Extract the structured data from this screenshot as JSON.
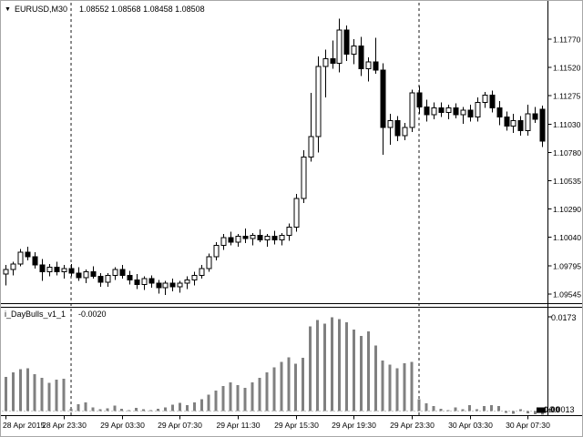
{
  "colors": {
    "background": "#ffffff",
    "border": "#a8a8a8",
    "text": "#000000",
    "bull_body": "#ffffff",
    "bear_body": "#000000",
    "candle_outline": "#000000",
    "histogram": "#808080",
    "zero_line": "#c8c8c8",
    "day_separator": "#1a1a1a",
    "axis_line": "#000000"
  },
  "header": {
    "dropdown_icon": "▼"
  },
  "indicator_marker": {
    "arrow": "◄",
    "overlap_text": "0.00"
  },
  "chart_data": [
    {
      "type": "candlestick",
      "title": "EURUSD,M30",
      "ohlc_display": "1.08552 1.08568 1.08458 1.08508",
      "y_ticks": [
        "1.11770",
        "1.11520",
        "1.11275",
        "1.11030",
        "1.10780",
        "1.10535",
        "1.10290",
        "1.10040",
        "1.09795",
        "1.09545"
      ],
      "x_ticks": [
        {
          "bar": 0,
          "label": "28 Apr 2015"
        },
        {
          "bar": 8,
          "label": "28 Apr 23:30"
        },
        {
          "bar": 16,
          "label": "29 Apr 03:30"
        },
        {
          "bar": 24,
          "label": "29 Apr 07:30"
        },
        {
          "bar": 32,
          "label": "29 Apr 11:30"
        },
        {
          "bar": 40,
          "label": "29 Apr 15:30"
        },
        {
          "bar": 48,
          "label": "29 Apr 19:30"
        },
        {
          "bar": 56,
          "label": "29 Apr 23:30"
        },
        {
          "bar": 64,
          "label": "30 Apr 03:30"
        },
        {
          "bar": 72,
          "label": "30 Apr 07:30"
        }
      ],
      "day_separator_bars": [
        9,
        57
      ],
      "candles": [
        [
          1.0972,
          1.098,
          1.0962,
          1.0976
        ],
        [
          1.0976,
          1.0983,
          1.0971,
          1.0981
        ],
        [
          1.0981,
          1.0994,
          1.0979,
          1.0991
        ],
        [
          1.0991,
          1.0996,
          1.0984,
          1.0987
        ],
        [
          1.0987,
          1.0991,
          1.0977,
          1.098
        ],
        [
          1.098,
          1.0985,
          1.0966,
          1.0974
        ],
        [
          1.0974,
          1.0981,
          1.097,
          1.0978
        ],
        [
          1.0978,
          1.0983,
          1.0971,
          1.0974
        ],
        [
          1.0974,
          1.098,
          1.0968,
          1.0977
        ],
        [
          1.0977,
          1.0981,
          1.097,
          1.0973
        ],
        [
          1.0973,
          1.0978,
          1.0966,
          1.0969
        ],
        [
          1.0969,
          1.0976,
          1.0964,
          1.0974
        ],
        [
          1.0974,
          1.0979,
          1.0968,
          1.097
        ],
        [
          1.097,
          1.0973,
          1.0961,
          1.0965
        ],
        [
          1.0965,
          1.0973,
          1.0961,
          1.0971
        ],
        [
          1.0971,
          1.0978,
          1.0967,
          1.0976
        ],
        [
          1.0976,
          1.098,
          1.0968,
          1.0971
        ],
        [
          1.0971,
          1.0975,
          1.0963,
          1.0967
        ],
        [
          1.0967,
          1.0972,
          1.0959,
          1.0963
        ],
        [
          1.0963,
          1.097,
          1.0958,
          1.0968
        ],
        [
          1.0968,
          1.0971,
          1.096,
          1.0964
        ],
        [
          1.0964,
          1.0967,
          1.0955,
          1.096
        ],
        [
          1.096,
          1.0966,
          1.0954,
          1.0964
        ],
        [
          1.0964,
          1.0968,
          1.0957,
          1.0961
        ],
        [
          1.0961,
          1.0966,
          1.0956,
          1.0964
        ],
        [
          1.0964,
          1.097,
          1.0959,
          1.0967
        ],
        [
          1.0967,
          1.0974,
          1.0962,
          1.0971
        ],
        [
          1.0971,
          1.098,
          1.0968,
          1.0977
        ],
        [
          1.0977,
          1.099,
          1.0974,
          1.0987
        ],
        [
          1.0987,
          1.1,
          1.0984,
          1.0997
        ],
        [
          1.0997,
          1.1007,
          1.0993,
          1.1004
        ],
        [
          1.1004,
          1.1009,
          1.0997,
          1.1
        ],
        [
          1.1,
          1.1007,
          1.0996,
          1.1005
        ],
        [
          1.1005,
          1.1012,
          1.0999,
          1.1003
        ],
        [
          1.1003,
          1.1008,
          1.0997,
          1.1006
        ],
        [
          1.1006,
          1.1011,
          1.1,
          1.1002
        ],
        [
          1.1002,
          1.1007,
          1.0996,
          1.1005
        ],
        [
          1.1005,
          1.101,
          1.0998,
          1.1002
        ],
        [
          1.1002,
          1.1008,
          1.0997,
          1.1006
        ],
        [
          1.1006,
          1.1016,
          1.1001,
          1.1013
        ],
        [
          1.1013,
          1.1042,
          1.1009,
          1.1038
        ],
        [
          1.1038,
          1.108,
          1.1034,
          1.1074
        ],
        [
          1.1074,
          1.113,
          1.107,
          1.1092
        ],
        [
          1.1092,
          1.1162,
          1.1078,
          1.1153
        ],
        [
          1.1153,
          1.1168,
          1.1126,
          1.116
        ],
        [
          1.116,
          1.1176,
          1.1151,
          1.1156
        ],
        [
          1.1156,
          1.1195,
          1.1148,
          1.1185
        ],
        [
          1.1185,
          1.1189,
          1.1158,
          1.1164
        ],
        [
          1.1164,
          1.1177,
          1.1155,
          1.1171
        ],
        [
          1.1171,
          1.1179,
          1.1145,
          1.1151
        ],
        [
          1.1151,
          1.1161,
          1.114,
          1.1157
        ],
        [
          1.1157,
          1.1178,
          1.1147,
          1.115
        ],
        [
          1.115,
          1.1156,
          1.1076,
          1.11
        ],
        [
          1.11,
          1.1112,
          1.1085,
          1.1106
        ],
        [
          1.1106,
          1.111,
          1.1088,
          1.1093
        ],
        [
          1.1093,
          1.1104,
          1.1089,
          1.11
        ],
        [
          1.11,
          1.1133,
          1.1096,
          1.113
        ],
        [
          1.113,
          1.1136,
          1.1112,
          1.1118
        ],
        [
          1.1118,
          1.1124,
          1.1105,
          1.1111
        ],
        [
          1.1111,
          1.1122,
          1.1107,
          1.1117
        ],
        [
          1.1117,
          1.1122,
          1.1109,
          1.1113
        ],
        [
          1.1113,
          1.112,
          1.1107,
          1.1117
        ],
        [
          1.1117,
          1.1121,
          1.1108,
          1.1111
        ],
        [
          1.1111,
          1.1118,
          1.1103,
          1.1115
        ],
        [
          1.1115,
          1.112,
          1.1105,
          1.1109
        ],
        [
          1.1109,
          1.1126,
          1.1105,
          1.1122
        ],
        [
          1.1122,
          1.1131,
          1.1117,
          1.1128
        ],
        [
          1.1128,
          1.1132,
          1.1113,
          1.1117
        ],
        [
          1.1117,
          1.1123,
          1.1102,
          1.1109
        ],
        [
          1.1109,
          1.1114,
          1.1097,
          1.1101
        ],
        [
          1.1101,
          1.1112,
          1.1095,
          1.1106
        ],
        [
          1.1106,
          1.111,
          1.1093,
          1.1097
        ],
        [
          1.1097,
          1.112,
          1.1093,
          1.1112
        ],
        [
          1.1112,
          1.1118,
          1.1104,
          1.1107
        ],
        [
          1.1116,
          1.1119,
          1.1083,
          1.1088
        ]
      ]
    },
    {
      "type": "bar",
      "title": "i_DayBulls_v1_1",
      "current_value": "-0.0020",
      "scale_max": "0.0173",
      "scale_min_label": "0.0013",
      "values": [
        0.0063,
        0.0071,
        0.0077,
        0.0079,
        0.0068,
        0.0061,
        0.0052,
        0.0058,
        0.006,
        0.0004,
        0.0013,
        0.0016,
        0.0007,
        0.0003,
        0.0005,
        0.001,
        0.0004,
        0.0002,
        0.0006,
        0.0003,
        0.0002,
        0.0004,
        0.0007,
        0.0012,
        0.0015,
        0.0011,
        0.0016,
        0.0022,
        0.003,
        0.0038,
        0.0046,
        0.0053,
        0.0048,
        0.0043,
        0.0053,
        0.0061,
        0.0071,
        0.0081,
        0.0091,
        0.0099,
        0.0087,
        0.0098,
        0.0156,
        0.0168,
        0.0161,
        0.0173,
        0.017,
        0.0164,
        0.015,
        0.0139,
        0.0147,
        0.0121,
        0.0093,
        0.0086,
        0.0079,
        0.0088,
        0.0091,
        0.0022,
        0.0014,
        0.0009,
        0.0004,
        0.0002,
        0.0007,
        0.0003,
        0.0011,
        0.0003,
        0.0009,
        0.0011,
        0.0009,
        -0.0003,
        -0.0005,
        0.0003,
        -0.0004,
        -0.0006,
        -0.002
      ]
    }
  ]
}
